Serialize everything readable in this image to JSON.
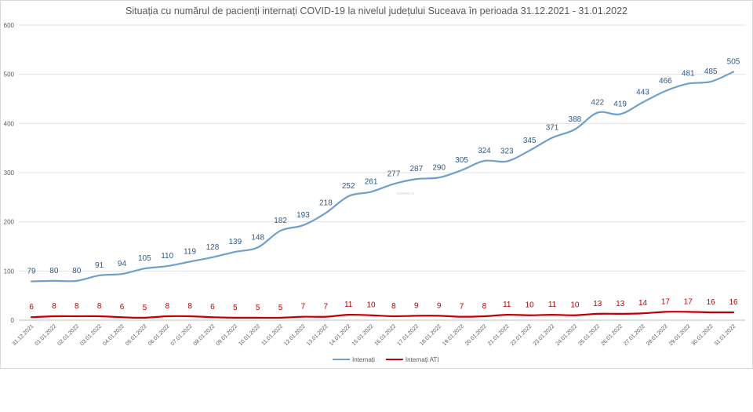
{
  "chart_data": {
    "type": "line",
    "title": "Situația cu numărul de pacienți internați COVID-19 la nivelul județului Suceava în perioada 31.12.2021 - 31.01.2022",
    "watermark": "svnews.ro",
    "categories": [
      "31.12.2021",
      "01.01.2022",
      "02.01.2022",
      "03.01.2022",
      "04.01.2022",
      "05.01.2022",
      "06.01.2022",
      "07.01.2022",
      "08.01.2022",
      "09.01.2022",
      "10.01.2022",
      "11.01.2022",
      "12.01.2022",
      "13.01.2022",
      "14.01.2022",
      "15.01.2022",
      "16.01.2022",
      "17.01.2022",
      "18.01.2022",
      "19.01.2022",
      "20.01.2022",
      "21.01.2022",
      "22.01.2022",
      "23.01.2022",
      "24.01.2022",
      "25.01.2022",
      "26.01.2022",
      "27.01.2022",
      "28.01.2022",
      "29.01.2022",
      "30.01.2022",
      "31.01.2022"
    ],
    "series": [
      {
        "name": "Internați",
        "color": "#6fa0cc",
        "label_color": "#2e5a8a",
        "values": [
          79,
          80,
          80,
          91,
          94,
          105,
          110,
          119,
          128,
          139,
          148,
          182,
          193,
          218,
          252,
          261,
          277,
          287,
          290,
          305,
          324,
          323,
          345,
          371,
          388,
          422,
          419,
          443,
          466,
          481,
          485,
          505
        ]
      },
      {
        "name": "Internați ATI",
        "color": "#c00000",
        "label_color": "#c00000",
        "values": [
          6,
          8,
          8,
          8,
          6,
          5,
          8,
          8,
          6,
          5,
          5,
          5,
          7,
          7,
          11,
          10,
          8,
          9,
          9,
          7,
          8,
          11,
          10,
          11,
          10,
          13,
          13,
          14,
          17,
          17,
          16,
          16
        ]
      }
    ],
    "yticks": [
      0,
      100,
      200,
      300,
      400,
      500,
      600
    ],
    "ylim": [
      0,
      600
    ],
    "grid": true,
    "legend_position": "bottom"
  }
}
